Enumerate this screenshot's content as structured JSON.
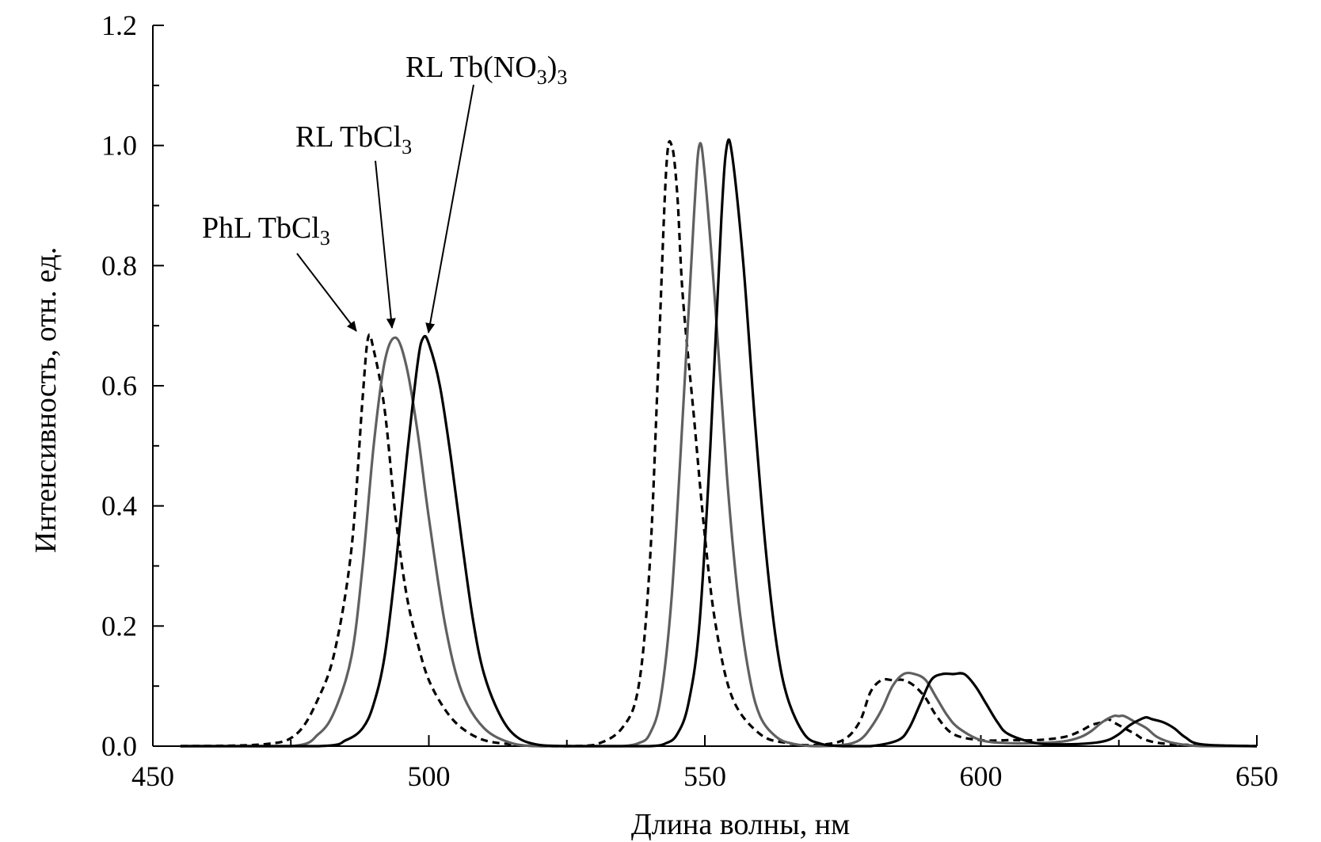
{
  "chart_data": {
    "type": "line",
    "xlabel": "Длина волны, нм",
    "ylabel": "Интенсивность, отн. ед.",
    "xlim": [
      450,
      650
    ],
    "ylim": [
      0,
      1.2
    ],
    "x_ticks": [
      "450",
      "500",
      "550",
      "600",
      "650"
    ],
    "y_ticks": [
      "0.0",
      "0.2",
      "0.4",
      "0.6",
      "0.8",
      "1.0",
      "1.2"
    ],
    "grid": false,
    "series": [
      {
        "name": "PhL TbCl3",
        "style": "dashed",
        "color": "#000000",
        "x": [
          455,
          470,
          476,
          480,
          483,
          486,
          488,
          489,
          490,
          492,
          494,
          496,
          498,
          500,
          503,
          506,
          510,
          515,
          520,
          525,
          530,
          535,
          538,
          540,
          541.5,
          543,
          544,
          545,
          546,
          548,
          550,
          552,
          555,
          560,
          565,
          570,
          575,
          578,
          580,
          582,
          584,
          586,
          588,
          590,
          592,
          595,
          600,
          605,
          610,
          615,
          618,
          620,
          622,
          623,
          624,
          626,
          628,
          630,
          635,
          650
        ],
        "y": [
          0.0,
          0.003,
          0.02,
          0.08,
          0.16,
          0.33,
          0.58,
          0.68,
          0.66,
          0.56,
          0.38,
          0.25,
          0.17,
          0.11,
          0.06,
          0.03,
          0.01,
          0.003,
          0.0,
          0.0,
          0.002,
          0.03,
          0.1,
          0.3,
          0.62,
          0.96,
          1.0,
          0.92,
          0.75,
          0.55,
          0.35,
          0.2,
          0.08,
          0.02,
          0.005,
          0.002,
          0.01,
          0.04,
          0.09,
          0.11,
          0.11,
          0.11,
          0.1,
          0.08,
          0.05,
          0.02,
          0.01,
          0.01,
          0.01,
          0.015,
          0.025,
          0.035,
          0.04,
          0.045,
          0.04,
          0.03,
          0.02,
          0.01,
          0.003,
          0.0
        ]
      },
      {
        "name": "RL TbCl3",
        "color": "#606060",
        "x": [
          455,
          475,
          480,
          483,
          486,
          488,
          490,
          492,
          494,
          496,
          498,
          500,
          503,
          506,
          510,
          515,
          520,
          525,
          530,
          535,
          538,
          540,
          542,
          544,
          546,
          548,
          549,
          550,
          552,
          554,
          556,
          558,
          560,
          563,
          566,
          570,
          575,
          578,
          580,
          582,
          584,
          586,
          588,
          590,
          592,
          594,
          596,
          600,
          605,
          610,
          615,
          618,
          620,
          622,
          624,
          625,
          626,
          628,
          630,
          632,
          635,
          640,
          650
        ],
        "y": [
          0.0,
          0.0,
          0.02,
          0.06,
          0.15,
          0.3,
          0.5,
          0.64,
          0.68,
          0.63,
          0.52,
          0.38,
          0.2,
          0.09,
          0.03,
          0.005,
          0.0,
          0.0,
          0.0,
          0.0,
          0.005,
          0.02,
          0.08,
          0.25,
          0.55,
          0.88,
          1.0,
          0.95,
          0.72,
          0.45,
          0.25,
          0.12,
          0.05,
          0.015,
          0.004,
          0.0,
          0.002,
          0.01,
          0.03,
          0.06,
          0.1,
          0.12,
          0.12,
          0.11,
          0.08,
          0.05,
          0.03,
          0.01,
          0.005,
          0.005,
          0.008,
          0.015,
          0.025,
          0.04,
          0.05,
          0.05,
          0.05,
          0.04,
          0.03,
          0.015,
          0.005,
          0.0,
          0.0
        ]
      },
      {
        "name": "RL Tb(NO3)3",
        "color": "#000000",
        "x": [
          455,
          480,
          485,
          488,
          490,
          492,
          494,
          496,
          498,
          499,
          500,
          502,
          504,
          506,
          508,
          510,
          513,
          516,
          520,
          525,
          530,
          540,
          543,
          545,
          547,
          549,
          551,
          553,
          554,
          555,
          557,
          559,
          561,
          563,
          565,
          568,
          571,
          575,
          580,
          585,
          587,
          589,
          591,
          593,
          595,
          597,
          599,
          601,
          603,
          605,
          610,
          615,
          620,
          623,
          625,
          627,
          629,
          630,
          631,
          633,
          635,
          637,
          640,
          650
        ],
        "y": [
          0.0,
          0.0,
          0.01,
          0.03,
          0.07,
          0.15,
          0.3,
          0.48,
          0.64,
          0.68,
          0.67,
          0.6,
          0.48,
          0.34,
          0.21,
          0.12,
          0.05,
          0.015,
          0.002,
          0.0,
          0.0,
          0.0,
          0.005,
          0.02,
          0.07,
          0.2,
          0.5,
          0.88,
          1.0,
          0.98,
          0.8,
          0.55,
          0.33,
          0.17,
          0.08,
          0.02,
          0.004,
          0.0,
          0.0,
          0.01,
          0.03,
          0.07,
          0.11,
          0.12,
          0.12,
          0.12,
          0.1,
          0.07,
          0.04,
          0.02,
          0.005,
          0.003,
          0.005,
          0.01,
          0.02,
          0.035,
          0.045,
          0.048,
          0.045,
          0.04,
          0.03,
          0.015,
          0.003,
          0.0
        ]
      }
    ],
    "annotations": [
      {
        "text": "PhL TbCl",
        "sub": "3",
        "points_to_series": "PhL TbCl3"
      },
      {
        "text": "RL TbCl",
        "sub": "3",
        "points_to_series": "RL TbCl3"
      },
      {
        "text": "RL Tb(NO",
        "sub": "3",
        "tail": ")",
        "sub2": "3",
        "points_to_series": "RL Tb(NO3)3"
      }
    ]
  }
}
